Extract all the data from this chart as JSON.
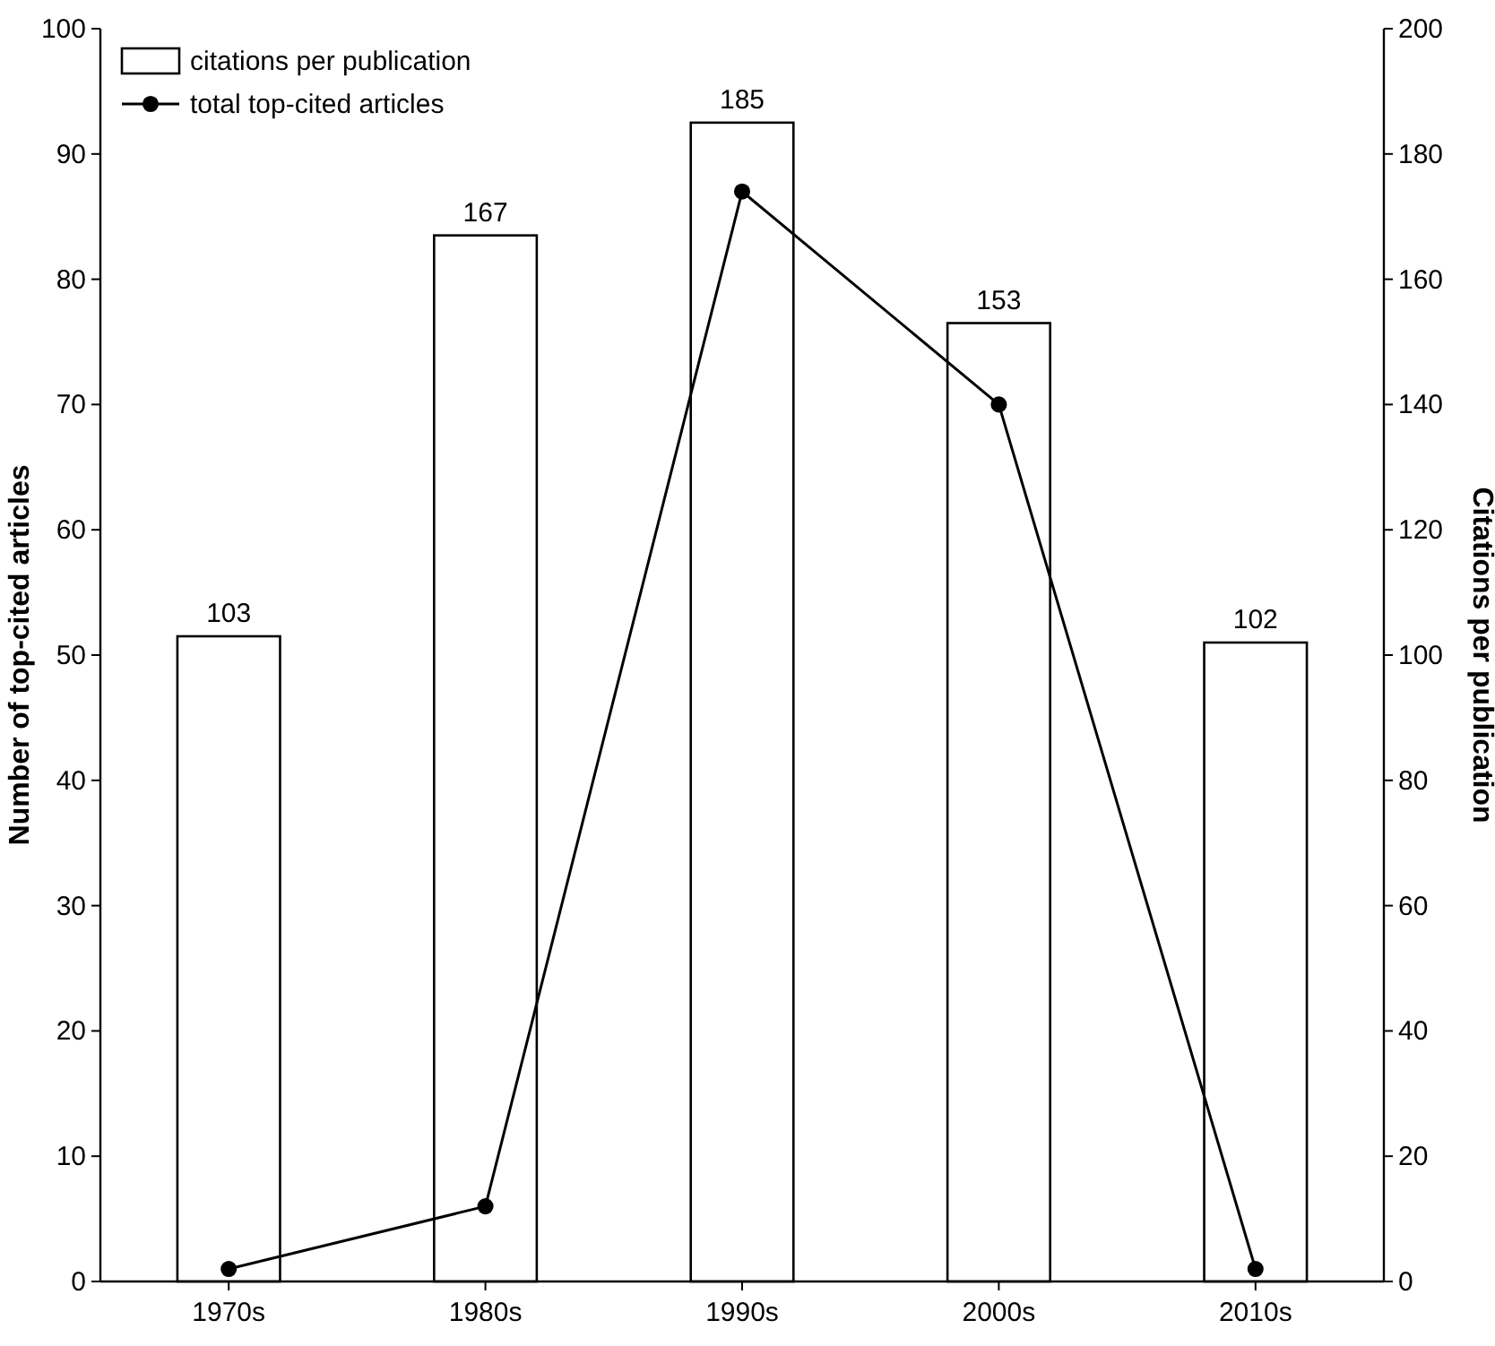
{
  "chart_data": {
    "type": "bar",
    "categories": [
      "1970s",
      "1980s",
      "1990s",
      "2000s",
      "2010s"
    ],
    "ylabel": "Number of top-cited articles",
    "y2label": "Citations per publication",
    "ylim": [
      0,
      100
    ],
    "yticks": [
      0,
      10,
      20,
      30,
      40,
      50,
      60,
      70,
      80,
      90,
      100
    ],
    "y2lim": [
      0,
      200
    ],
    "y2ticks": [
      0,
      20,
      40,
      60,
      80,
      100,
      120,
      140,
      160,
      180,
      200
    ],
    "series": [
      {
        "name": "citations per publication",
        "axis": "y2",
        "color": "#ffffff",
        "values": [
          103,
          167,
          185,
          153,
          102
        ],
        "value_labels": [
          "103",
          "167",
          "185",
          "153",
          "102"
        ]
      },
      {
        "name": "total top-cited articles",
        "type": "line",
        "axis": "y",
        "color": "#000000",
        "marker": "circle",
        "values": [
          1,
          6,
          87,
          70,
          1
        ]
      }
    ],
    "legend": "top left",
    "grid": false
  }
}
